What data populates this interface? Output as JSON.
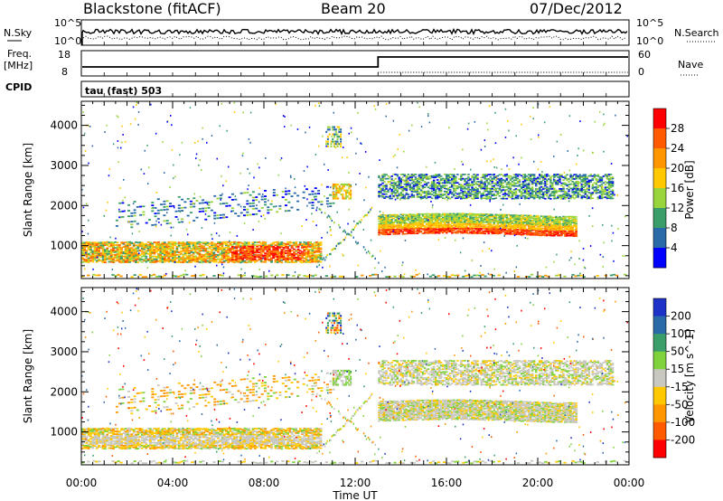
{
  "header": {
    "station": "Blackstone (fitACF)",
    "beam": "Beam 20",
    "date": "07/Dec/2012"
  },
  "panel_labels": {
    "nsky": "N.Sky",
    "nsky_top": "10^5",
    "nsky_bottom": "10^0",
    "nsearch": "N.Search",
    "nsearch_top": "10^5",
    "nsearch_bottom": "10^0",
    "freq": "Freq.",
    "freq_unit": "[MHz]",
    "freq_top": "18",
    "freq_bottom": "8",
    "nave": "Nave",
    "nave_top": "60",
    "nave_bottom": "0",
    "cpid": "CPID",
    "cpid_value": "tau (fast) 503"
  },
  "chart_data": [
    {
      "type": "heatmap",
      "name": "power",
      "xlabel": "",
      "ylabel": "Slant Range [km]",
      "x_range_hours": [
        0,
        24
      ],
      "ylim": [
        180,
        4600
      ],
      "y_ticks": [
        1000,
        2000,
        3000,
        4000
      ],
      "colorbar_label": "Power [dB]",
      "colorbar_ticks": [
        "28",
        "24",
        "20",
        "16",
        "12",
        "8",
        "4"
      ],
      "colorbar_colors": [
        "#ff0000",
        "#ff5a00",
        "#ff9600",
        "#ffc800",
        "#9ad43c",
        "#3a9e6a",
        "#2a6aa8",
        "#0000ff"
      ]
    },
    {
      "type": "heatmap",
      "name": "velocity",
      "xlabel": "Time UT",
      "ylabel": "Slant Range [km]",
      "x_range_hours": [
        0,
        24
      ],
      "x_ticks": [
        "00:00",
        "04:00",
        "08:00",
        "12:00",
        "16:00",
        "20:00",
        "00:00"
      ],
      "ylim": [
        180,
        4600
      ],
      "y_ticks": [
        1000,
        2000,
        3000,
        4000
      ],
      "colorbar_label": "Velocity [m s^-1]",
      "colorbar_ticks": [
        "200",
        "100",
        "50",
        "15",
        "-15",
        "-50",
        "-100",
        "-200"
      ],
      "colorbar_colors": [
        "#1e32c8",
        "#2a6aa8",
        "#3a9e6a",
        "#7fd23c",
        "#c8c8c0",
        "#ffc800",
        "#ff9600",
        "#ff5a00",
        "#ff0000"
      ]
    }
  ]
}
